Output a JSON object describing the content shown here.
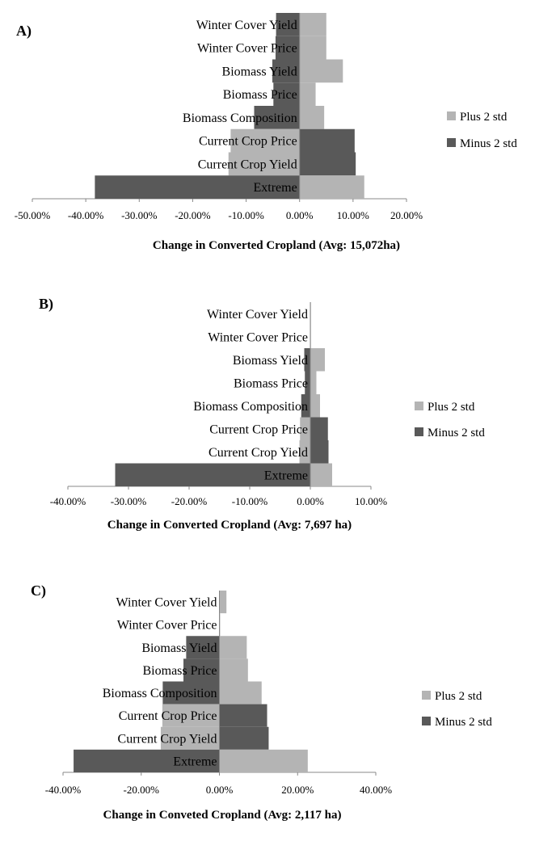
{
  "colors": {
    "plus": "#b4b4b4",
    "minus": "#595959",
    "axis": "#888888"
  },
  "chart_data": [
    {
      "panel_label": "A)",
      "type": "bar",
      "orientation": "horizontal",
      "stacked_overlay": true,
      "categories": [
        "Winter Cover Yield",
        "Winter Cover Price",
        "Biomass Yield",
        "Biomass Price",
        "Biomass Composition",
        "Current Crop Price",
        "Current Crop Yield",
        "Extreme"
      ],
      "series": [
        {
          "name": "Plus 2 std",
          "values": [
            5.0,
            5.0,
            8.1,
            3.0,
            4.6,
            -12.9,
            -13.3,
            12.1
          ]
        },
        {
          "name": "Minus 2 std",
          "values": [
            -4.4,
            -4.5,
            -5.1,
            -4.9,
            -8.5,
            10.3,
            10.5,
            -38.3
          ]
        }
      ],
      "xticks": [
        "-50.00%",
        "-40.00%",
        "-30.00%",
        "-20.00%",
        "-10.00%",
        "0.00%",
        "10.00%",
        "20.00%"
      ],
      "xlim": [
        -50,
        20
      ],
      "xlabel": "Change in Converted Cropland (Avg: 15,072ha)",
      "legend_position": "right"
    },
    {
      "panel_label": "B)",
      "type": "bar",
      "orientation": "horizontal",
      "stacked_overlay": true,
      "categories": [
        "Winter Cover Yield",
        "Winter Cover Price",
        "Biomass Yield",
        "Biomass Price",
        "Biomass Composition",
        "Current Crop Price",
        "Current Crop Yield",
        "Extreme"
      ],
      "series": [
        {
          "name": "Plus 2 std",
          "values": [
            0.1,
            0.05,
            2.4,
            1.0,
            1.6,
            -1.7,
            -1.8,
            3.6
          ]
        },
        {
          "name": "Minus 2 std",
          "values": [
            -0.05,
            -0.05,
            -1.0,
            -0.9,
            -1.5,
            2.9,
            3.0,
            -32.2
          ]
        }
      ],
      "xticks": [
        "-40.00%",
        "-30.00%",
        "-20.00%",
        "-10.00%",
        "0.00%",
        "10.00%"
      ],
      "xlim": [
        -40,
        10
      ],
      "xlabel": "Change in Converted Cropland (Avg: 7,697 ha)",
      "legend_position": "right"
    },
    {
      "panel_label": "C)",
      "type": "bar",
      "orientation": "horizontal",
      "stacked_overlay": true,
      "categories": [
        "Winter Cover Yield",
        "Winter Cover Price",
        "Biomass Yield",
        "Biomass Price",
        "Biomass Composition",
        "Current Crop Price",
        "Current Crop Yield",
        "Extreme"
      ],
      "series": [
        {
          "name": "Plus 2 std",
          "values": [
            1.8,
            0.2,
            7.0,
            7.3,
            10.8,
            -14.6,
            -15.0,
            22.6
          ]
        },
        {
          "name": "Minus 2 std",
          "values": [
            -0.1,
            -0.1,
            -8.5,
            -9.2,
            -14.5,
            12.2,
            12.6,
            -37.3
          ]
        }
      ],
      "xticks": [
        "-40.00%",
        "-20.00%",
        "0.00%",
        "20.00%",
        "40.00%"
      ],
      "xlim": [
        -40,
        40
      ],
      "xlabel": "Change in Conveted Cropland (Avg: 2,117 ha)",
      "legend_position": "right"
    }
  ]
}
